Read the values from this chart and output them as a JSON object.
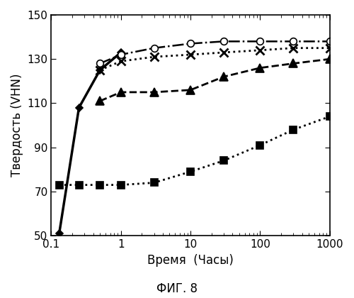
{
  "xlabel": "Время  (Часы)",
  "ylabel": "Твердость (VHN)",
  "caption": "ФИГ. 8",
  "xlim": [
    0.1,
    1000
  ],
  "ylim": [
    50,
    150
  ],
  "yticks": [
    50,
    70,
    90,
    110,
    130,
    150
  ],
  "xticks": [
    0.1,
    1,
    10,
    100,
    1000
  ],
  "xticklabels": [
    "0.1",
    "1",
    "10",
    "100",
    "1000"
  ],
  "series": [
    {
      "name": "solid_diamond",
      "x": [
        0.13,
        0.25,
        0.5,
        1.0
      ],
      "y": [
        51,
        108,
        125,
        133
      ],
      "color": "#000000",
      "linestyle": "-",
      "linewidth": 2.5,
      "marker": "D",
      "markersize": 5,
      "markerfacecolor": "#000000",
      "markeredgecolor": "#000000"
    },
    {
      "name": "dashdot_circle",
      "x": [
        0.5,
        1.0,
        3.0,
        10.0,
        30.0,
        100.0,
        300.0,
        1000.0
      ],
      "y": [
        128,
        132,
        135,
        137,
        138,
        138,
        138,
        138
      ],
      "color": "#000000",
      "linestyle": "-.",
      "linewidth": 1.8,
      "marker": "o",
      "markersize": 7,
      "markerfacecolor": "#ffffff",
      "markeredgecolor": "#000000"
    },
    {
      "name": "dotted_star",
      "x": [
        0.5,
        1.0,
        3.0,
        10.0,
        30.0,
        100.0,
        300.0,
        1000.0
      ],
      "y": [
        125,
        129,
        131,
        132,
        133,
        134,
        135,
        135
      ],
      "color": "#000000",
      "linestyle": ":",
      "linewidth": 2.0,
      "marker": "x",
      "markersize": 9,
      "markerfacecolor": "#000000",
      "markeredgecolor": "#000000",
      "markeredgewidth": 2.0
    },
    {
      "name": "dashed_triangle",
      "x": [
        0.5,
        1.0,
        3.0,
        10.0,
        30.0,
        100.0,
        300.0,
        1000.0
      ],
      "y": [
        111,
        115,
        115,
        116,
        122,
        126,
        128,
        130
      ],
      "color": "#000000",
      "linestyle": "--",
      "linewidth": 2.0,
      "marker": "^",
      "markersize": 8,
      "markerfacecolor": "#000000",
      "markeredgecolor": "#000000"
    },
    {
      "name": "dotted_square",
      "x": [
        0.13,
        0.25,
        0.5,
        1.0,
        3.0,
        10.0,
        30.0,
        100.0,
        300.0,
        1000.0
      ],
      "y": [
        73,
        73,
        73,
        73,
        74,
        79,
        84,
        91,
        98,
        104
      ],
      "color": "#000000",
      "linestyle": ":",
      "linewidth": 2.0,
      "marker": "s",
      "markersize": 7,
      "markerfacecolor": "#000000",
      "markeredgecolor": "#000000"
    }
  ]
}
